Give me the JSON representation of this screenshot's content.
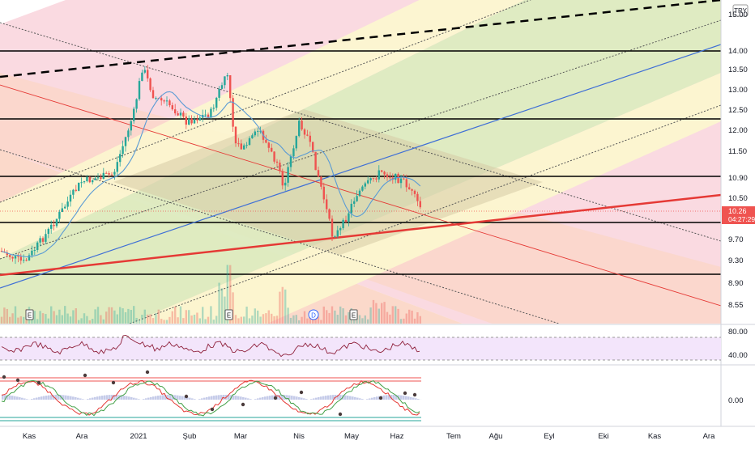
{
  "currency_badge": "TRY",
  "price_axis": {
    "ticks": [
      "15.00",
      "14.00",
      "13.50",
      "13.00",
      "12.50",
      "12.00",
      "11.50",
      "10.90",
      "10.50",
      "9.70",
      "9.30",
      "8.90",
      "8.55"
    ],
    "current_price": "10.26",
    "countdown": "04:27:29"
  },
  "rsi_axis": {
    "ticks": [
      "80.00",
      "40.00"
    ]
  },
  "osc_axis": {
    "ticks": [
      "0.00"
    ]
  },
  "time_axis": {
    "ticks": [
      "Kas",
      "Ara",
      "2021",
      "Şub",
      "Mar",
      "Nis",
      "May",
      "Haz",
      "Tem",
      "Ağu",
      "Eyl",
      "Eki",
      "Kas",
      "Ara"
    ]
  },
  "event_markers": [
    {
      "glyph": "E",
      "kind": "earnings"
    },
    {
      "glyph": "E",
      "kind": "earnings"
    },
    {
      "glyph": "D",
      "kind": "dividend"
    },
    {
      "glyph": "E",
      "kind": "earnings"
    }
  ],
  "colors": {
    "up_candle": "#26a69a",
    "down_candle": "#ef5350",
    "current_price_badge": "#ef5350",
    "rsi_band": "#f3e5fb",
    "rsi_line": "#8e1f3a",
    "fib_pink": "#f9d4dc",
    "fib_salmon": "#fbd5c4",
    "fib_yellow": "#fcf7cf",
    "fib_green": "#dcecbf",
    "trend_red": "#e53935",
    "trend_blue": "#3f6fd6"
  }
}
